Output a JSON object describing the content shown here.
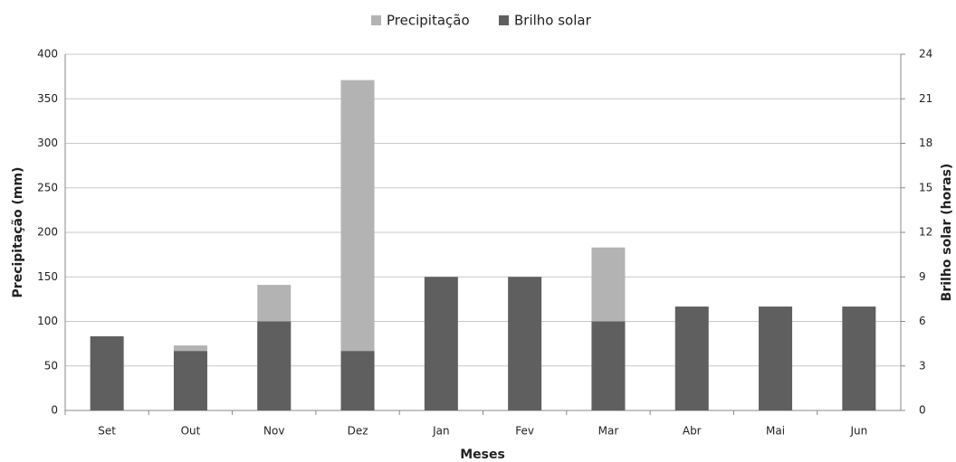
{
  "chart_data": {
    "type": "bar",
    "categories": [
      "Set",
      "Out",
      "Nov",
      "Dez",
      "Jan",
      "Fev",
      "Mar",
      "Abr",
      "Mai",
      "Jun"
    ],
    "series": [
      {
        "name": "Precipitação",
        "color": "#b3b3b3",
        "values": [
          null,
          73,
          141,
          371,
          null,
          null,
          183,
          null,
          null,
          null
        ]
      },
      {
        "name": "Brilho solar",
        "color": "#5f5f5f",
        "axis": "y2",
        "values": [
          5,
          4,
          6,
          4,
          9,
          9,
          6,
          7,
          7,
          7
        ]
      }
    ],
    "xlabel": "Meses",
    "ylabel": "Precipitação (mm)",
    "y2label": "Brilho solar (horas)",
    "ylim": [
      0,
      400
    ],
    "yticks": [
      0,
      50,
      100,
      150,
      200,
      250,
      300,
      350,
      400
    ],
    "y2lim": [
      0,
      24
    ],
    "y2ticks": [
      0,
      3,
      6,
      9,
      12,
      15,
      18,
      21,
      24
    ],
    "grid": true,
    "legend": "top"
  }
}
